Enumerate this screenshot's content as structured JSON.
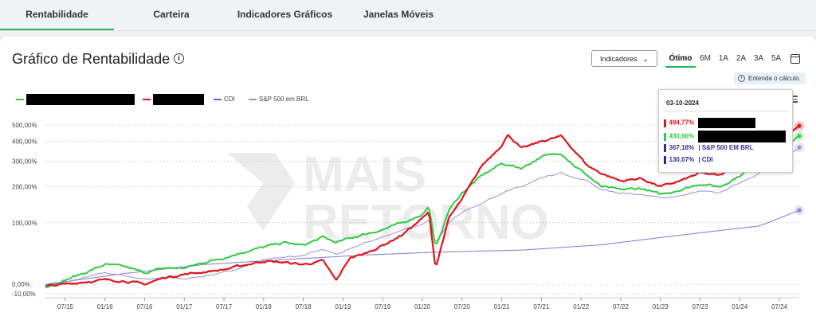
{
  "tabs": [
    {
      "label": "Rentabilidade",
      "active": true
    },
    {
      "label": "Carteira",
      "active": false
    },
    {
      "label": "Indicadores Gráficos",
      "active": false
    },
    {
      "label": "Janelas Móveis",
      "active": false
    }
  ],
  "header": {
    "title": "Gráfico de Rentabilidade",
    "indicators_label": "Indicadores",
    "explain_label": "Entenda o cálculo."
  },
  "periods": [
    {
      "label": "Ótimo",
      "active": true
    },
    {
      "label": "6M",
      "active": false
    },
    {
      "label": "1A",
      "active": false
    },
    {
      "label": "2A",
      "active": false
    },
    {
      "label": "3A",
      "active": false
    },
    {
      "label": "5A",
      "active": false
    }
  ],
  "legend": [
    {
      "label": "",
      "color": "#2ecc40",
      "redacted": true
    },
    {
      "label": "",
      "color": "#e0141b",
      "redacted": true
    },
    {
      "label": "CDI",
      "color": "#6a5acd",
      "redacted": false
    },
    {
      "label": "S&P 500 em BRL",
      "color": "#9a8fd0",
      "redacted": false
    }
  ],
  "tooltip": {
    "date": "03-10-2024",
    "rows": [
      {
        "value": "494,77%",
        "label": "",
        "color": "#e0141b",
        "redacted": true
      },
      {
        "value": "430,66%",
        "label": "",
        "color": "#2ecc40",
        "redacted": true
      },
      {
        "value": "367,18%",
        "label": "| S&P 500 EM BRL",
        "color": "#3b2a9a",
        "redacted": false
      },
      {
        "value": "130,07%",
        "label": "| CDI",
        "color": "#2a2aa0",
        "redacted": false
      }
    ]
  },
  "watermark": {
    "line1": "MAIS",
    "line2": "RETORNO"
  },
  "chart_data": {
    "type": "line",
    "y_scale": "log(1+r)",
    "y_ticks": [
      {
        "label": "500,00%",
        "value": 500
      },
      {
        "label": "400,00%",
        "value": 400
      },
      {
        "label": "300,00%",
        "value": 300
      },
      {
        "label": "200,00%",
        "value": 200
      },
      {
        "label": "100,00%",
        "value": 100
      },
      {
        "label": "0,00%",
        "value": 0
      },
      {
        "label": "-10,00%",
        "value": -10
      }
    ],
    "x_ticks": [
      "07/15",
      "01/16",
      "07/16",
      "01/17",
      "07/17",
      "01/18",
      "07/18",
      "01/19",
      "07/19",
      "01/20",
      "07/20",
      "01/21",
      "07/21",
      "01/22",
      "07/22",
      "01/23",
      "07/23",
      "01/24",
      "07/24"
    ],
    "x_start": "2015-04",
    "x_end": "2024-10",
    "series": [
      {
        "name": "",
        "color": "#e0141b",
        "dates": [
          "2015-04",
          "2015-07",
          "2015-10",
          "2016-01",
          "2016-04",
          "2016-07",
          "2016-10",
          "2017-01",
          "2017-04",
          "2017-07",
          "2017-10",
          "2018-01",
          "2018-04",
          "2018-07",
          "2018-10",
          "2018-12",
          "2019-02",
          "2019-04",
          "2019-07",
          "2019-10",
          "2020-01",
          "2020-02",
          "2020-03",
          "2020-05",
          "2020-07",
          "2020-10",
          "2021-01",
          "2021-02",
          "2021-04",
          "2021-07",
          "2021-10",
          "2021-12",
          "2022-02",
          "2022-04",
          "2022-07",
          "2022-10",
          "2023-01",
          "2023-04",
          "2023-07",
          "2023-10",
          "2024-01",
          "2024-04",
          "2024-07",
          "2024-10"
        ],
        "values": [
          -2,
          0,
          3,
          5,
          4,
          0,
          8,
          12,
          15,
          18,
          24,
          30,
          28,
          25,
          30,
          4,
          35,
          40,
          55,
          75,
          110,
          125,
          20,
          110,
          160,
          280,
          380,
          440,
          360,
          400,
          430,
          350,
          280,
          250,
          220,
          230,
          200,
          220,
          250,
          240,
          290,
          330,
          400,
          494.77
        ]
      },
      {
        "name": "",
        "color": "#2ecc40",
        "dates": [
          "2015-04",
          "2015-07",
          "2015-10",
          "2016-01",
          "2016-04",
          "2016-07",
          "2016-10",
          "2017-01",
          "2017-04",
          "2017-07",
          "2017-10",
          "2018-01",
          "2018-04",
          "2018-07",
          "2018-10",
          "2018-12",
          "2019-02",
          "2019-04",
          "2019-07",
          "2019-10",
          "2020-01",
          "2020-02",
          "2020-03",
          "2020-05",
          "2020-07",
          "2020-10",
          "2021-01",
          "2021-04",
          "2021-07",
          "2021-10",
          "2021-12",
          "2022-02",
          "2022-04",
          "2022-07",
          "2022-10",
          "2023-01",
          "2023-04",
          "2023-07",
          "2023-10",
          "2024-01",
          "2024-04",
          "2024-07",
          "2024-10"
        ],
        "values": [
          -3,
          5,
          14,
          25,
          22,
          14,
          20,
          20,
          28,
          35,
          44,
          52,
          60,
          55,
          70,
          60,
          68,
          75,
          85,
          100,
          120,
          140,
          50,
          130,
          180,
          240,
          290,
          270,
          320,
          340,
          280,
          240,
          200,
          190,
          195,
          175,
          190,
          210,
          200,
          240,
          290,
          360,
          430.66
        ]
      },
      {
        "name": "S&P 500 em BRL",
        "color": "#9a8fd0",
        "dates": [
          "2015-04",
          "2015-07",
          "2015-10",
          "2016-01",
          "2016-04",
          "2016-07",
          "2016-10",
          "2017-01",
          "2017-04",
          "2017-07",
          "2017-10",
          "2018-01",
          "2018-04",
          "2018-07",
          "2018-10",
          "2018-12",
          "2019-02",
          "2019-04",
          "2019-07",
          "2019-10",
          "2020-01",
          "2020-02",
          "2020-03",
          "2020-05",
          "2020-07",
          "2020-10",
          "2021-01",
          "2021-04",
          "2021-07",
          "2021-10",
          "2021-12",
          "2022-02",
          "2022-04",
          "2022-07",
          "2022-10",
          "2023-01",
          "2023-04",
          "2023-07",
          "2023-10",
          "2024-01",
          "2024-04",
          "2024-07",
          "2024-10"
        ],
        "values": [
          -2,
          2,
          8,
          14,
          10,
          6,
          8,
          6,
          10,
          14,
          22,
          32,
          36,
          38,
          48,
          40,
          48,
          58,
          70,
          85,
          95,
          110,
          60,
          100,
          125,
          150,
          180,
          200,
          230,
          250,
          230,
          220,
          190,
          180,
          175,
          165,
          170,
          185,
          180,
          215,
          250,
          300,
          367.18
        ]
      },
      {
        "name": "CDI",
        "color": "#8b83d6",
        "dates": [
          "2015-04",
          "2016-04",
          "2017-04",
          "2018-04",
          "2019-04",
          "2020-04",
          "2021-04",
          "2022-04",
          "2023-04",
          "2024-04",
          "2024-10"
        ],
        "values": [
          0,
          13,
          25,
          32,
          39,
          44,
          47,
          56,
          74,
          93,
          130.07
        ]
      }
    ]
  }
}
